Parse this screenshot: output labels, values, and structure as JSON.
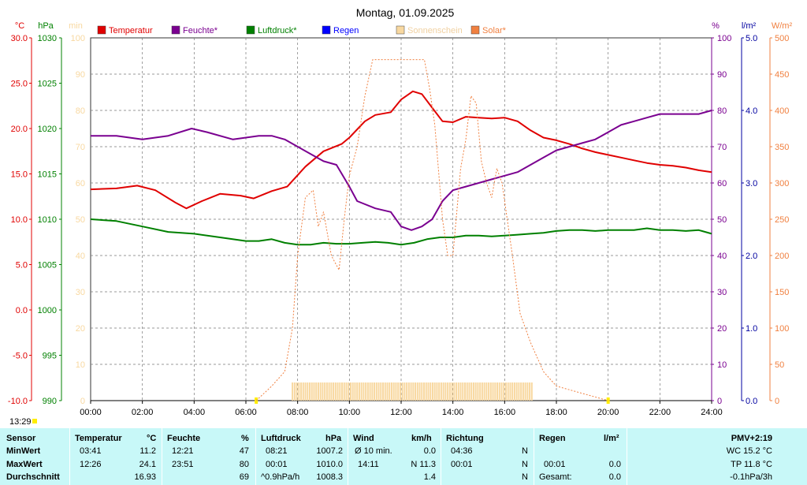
{
  "title": "Montag, 01.09.2025",
  "time_label": "13:29",
  "axis_units": {
    "temp": "°C",
    "pressure": "hPa",
    "sun": "min",
    "humidity": "%",
    "rain": "l/m²",
    "solar": "W/m²"
  },
  "legend": [
    {
      "label": "Temperatur",
      "color": "#e00000"
    },
    {
      "label": "Feuchte*",
      "color": "#7a0090"
    },
    {
      "label": "Luftdruck*",
      "color": "#008000"
    },
    {
      "label": "Regen",
      "color": "#0000ff"
    },
    {
      "label": "Sonnenschein",
      "color": "#f8d8a0"
    },
    {
      "label": "Solar*",
      "color": "#f08040"
    }
  ],
  "chart_data": {
    "type": "line",
    "title": "Montag, 01.09.2025",
    "x_ticks": [
      "00:00",
      "02:00",
      "04:00",
      "06:00",
      "08:00",
      "10:00",
      "12:00",
      "14:00",
      "16:00",
      "18:00",
      "20:00",
      "22:00",
      "24:00"
    ],
    "axes": {
      "temp": {
        "unit": "°C",
        "range": [
          -10,
          30
        ],
        "ticks": [
          "30.0",
          "25.0",
          "20.0",
          "15.0",
          "10.0",
          "5.0",
          "0.0",
          "-5.0",
          "-10.0"
        ]
      },
      "pressure": {
        "unit": "hPa",
        "range": [
          990,
          1030
        ],
        "ticks": [
          "1030",
          "1025",
          "1020",
          "1015",
          "1010",
          "1005",
          "1000",
          "995",
          "990"
        ]
      },
      "sun": {
        "unit": "min",
        "range": [
          0,
          100
        ],
        "ticks": [
          "100",
          "90",
          "80",
          "70",
          "60",
          "50",
          "40",
          "30",
          "20",
          "10",
          "0"
        ]
      },
      "humidity": {
        "unit": "%",
        "range": [
          0,
          100
        ],
        "ticks": [
          "100",
          "90",
          "80",
          "70",
          "60",
          "50",
          "40",
          "30",
          "20",
          "10",
          "0"
        ]
      },
      "rain": {
        "unit": "l/m²",
        "range": [
          0,
          5
        ],
        "ticks": [
          "5.0",
          "4.0",
          "3.0",
          "2.0",
          "1.0",
          "0.0"
        ]
      },
      "solar": {
        "unit": "W/m²",
        "range": [
          0,
          500
        ],
        "ticks": [
          "500",
          "450",
          "400",
          "350",
          "300",
          "250",
          "200",
          "150",
          "100",
          "50",
          "0"
        ]
      }
    },
    "series": [
      {
        "name": "Temperatur",
        "axis": "temp",
        "color": "#e00000",
        "x": [
          0,
          1,
          1.8,
          2.5,
          3.3,
          3.7,
          4.3,
          5,
          5.8,
          6.3,
          7,
          7.6,
          8.3,
          9,
          9.7,
          10,
          10.6,
          11,
          11.6,
          12,
          12.3,
          12.45,
          12.8,
          13.2,
          13.6,
          14,
          14.5,
          15,
          15.5,
          16,
          16.5,
          17,
          17.5,
          18,
          18.5,
          19,
          19.5,
          20,
          20.5,
          21,
          21.5,
          22,
          22.5,
          23,
          23.5,
          24
        ],
        "y": [
          13.3,
          13.4,
          13.7,
          13.2,
          11.8,
          11.2,
          12.0,
          12.8,
          12.6,
          12.3,
          13.1,
          13.6,
          15.8,
          17.5,
          18.3,
          19.0,
          20.8,
          21.5,
          21.8,
          23.2,
          23.8,
          24.1,
          23.8,
          22.3,
          20.8,
          20.7,
          21.3,
          21.2,
          21.1,
          21.2,
          20.8,
          19.8,
          19.0,
          18.7,
          18.3,
          17.8,
          17.4,
          17.1,
          16.8,
          16.5,
          16.2,
          16.0,
          15.9,
          15.7,
          15.4,
          15.2
        ]
      },
      {
        "name": "Feuchte*",
        "axis": "humidity",
        "color": "#7a0090",
        "x": [
          0,
          1,
          2,
          3,
          3.9,
          4.5,
          5.5,
          6.5,
          7,
          7.5,
          8,
          8.5,
          9,
          9.5,
          10,
          10.3,
          11,
          11.6,
          12,
          12.4,
          12.8,
          13.2,
          13.6,
          14,
          14.5,
          15,
          15.5,
          16,
          16.5,
          17,
          17.5,
          18,
          18.5,
          19,
          19.5,
          20,
          20.5,
          21,
          21.5,
          22,
          22.5,
          23,
          23.5,
          24
        ],
        "y": [
          73,
          73,
          72,
          73,
          75,
          74,
          72,
          73,
          73,
          72,
          70,
          68,
          66,
          65,
          59,
          55,
          53,
          52,
          48,
          47,
          48,
          50,
          55,
          58,
          59,
          60,
          61,
          62,
          63,
          65,
          67,
          69,
          70,
          71,
          72,
          74,
          76,
          77,
          78,
          79,
          79,
          79,
          79,
          80
        ]
      },
      {
        "name": "Luftdruck*",
        "axis": "pressure",
        "color": "#008000",
        "x": [
          0,
          1,
          2,
          3,
          4,
          5,
          6,
          6.5,
          7,
          7.5,
          8,
          8.5,
          9,
          9.5,
          10,
          10.5,
          11,
          11.5,
          12,
          12.5,
          13,
          13.5,
          14,
          14.5,
          15,
          15.5,
          16,
          16.5,
          17,
          17.5,
          18,
          18.5,
          19,
          19.5,
          20,
          20.5,
          21,
          21.5,
          22,
          22.5,
          23,
          23.5,
          24
        ],
        "y": [
          1010.0,
          1009.8,
          1009.2,
          1008.6,
          1008.4,
          1008.0,
          1007.6,
          1007.6,
          1007.8,
          1007.4,
          1007.2,
          1007.2,
          1007.4,
          1007.3,
          1007.3,
          1007.4,
          1007.5,
          1007.4,
          1007.2,
          1007.4,
          1007.8,
          1008.0,
          1008.0,
          1008.2,
          1008.2,
          1008.1,
          1008.2,
          1008.3,
          1008.4,
          1008.5,
          1008.7,
          1008.8,
          1008.8,
          1008.7,
          1008.8,
          1008.8,
          1008.8,
          1009.0,
          1008.8,
          1008.8,
          1008.7,
          1008.8,
          1008.4
        ]
      },
      {
        "name": "Solar*",
        "axis": "solar",
        "color": "#f08040",
        "dashed": true,
        "x": [
          6.4,
          7,
          7.5,
          7.8,
          8,
          8.3,
          8.6,
          8.8,
          9,
          9.3,
          9.6,
          9.8,
          10,
          10.3,
          10.6,
          10.9,
          11.1,
          11.3,
          11.5,
          11.7,
          12,
          12.3,
          12.6,
          12.8,
          12.9,
          13.1,
          13.3,
          13.6,
          13.8,
          14.0,
          14.3,
          14.5,
          14.7,
          14.9,
          15.1,
          15.3,
          15.5,
          15.7,
          15.9,
          16.1,
          16.3,
          16.6,
          17,
          17.5,
          18,
          18.5,
          19,
          19.5,
          20
        ],
        "y": [
          0,
          20,
          40,
          100,
          200,
          280,
          290,
          240,
          260,
          200,
          180,
          250,
          310,
          350,
          420,
          470,
          470,
          470,
          470,
          470,
          470,
          470,
          470,
          470,
          470,
          430,
          380,
          250,
          200,
          200,
          320,
          360,
          420,
          410,
          330,
          300,
          280,
          320,
          300,
          250,
          200,
          120,
          80,
          40,
          20,
          15,
          10,
          5,
          0
        ]
      }
    ],
    "sunshine": {
      "name": "Sonnenschein",
      "axis": "sun",
      "color": "#f8d8a0",
      "from": 7.8,
      "to": 17.1,
      "value": 5
    },
    "rain": {
      "name": "Regen",
      "axis": "rain",
      "color": "#0000ff",
      "values": []
    }
  },
  "table": {
    "row_labels": [
      "Sensor",
      "MinWert",
      "MaxWert",
      "Durchschnitt"
    ],
    "temperature": {
      "header": "Temperatur",
      "unit": "°C",
      "min_time": "03:41",
      "min": "11.2",
      "max_time": "12:26",
      "max": "24.1",
      "avg": "16.93"
    },
    "humidity": {
      "header": "Feuchte",
      "unit": "%",
      "min_time": "12:21",
      "min": "47",
      "max_time": "23:51",
      "max": "80",
      "avg": "69"
    },
    "pressure": {
      "header": "Luftdruck",
      "unit": "hPa",
      "min_time": "08:21",
      "min": "1007.2",
      "max_time": "00:01",
      "max": "1010.0",
      "avg_note": "^0.9hPa/h",
      "avg": "1008.3"
    },
    "wind": {
      "header": "Wind",
      "unit": "km/h",
      "min_label": "Ø 10 min.",
      "min": "0.0",
      "max_time": "14:11",
      "max": "N 11.3",
      "avg": "1.4"
    },
    "direction": {
      "header": "Richtung",
      "min_time": "04:36",
      "min": "N",
      "max_time": "00:01",
      "max": "N",
      "avg": "N"
    },
    "rain": {
      "header": "Regen",
      "unit": "l/m²",
      "max_time": "00:01",
      "max": "0.0",
      "total_label": "Gesamt:",
      "total": "0.0"
    },
    "pmv": {
      "header": "PMV+2:19",
      "wc": "WC 15.2 °C",
      "tp": "TP 11.8 °C",
      "trend": "-0.1hPa/3h"
    }
  }
}
